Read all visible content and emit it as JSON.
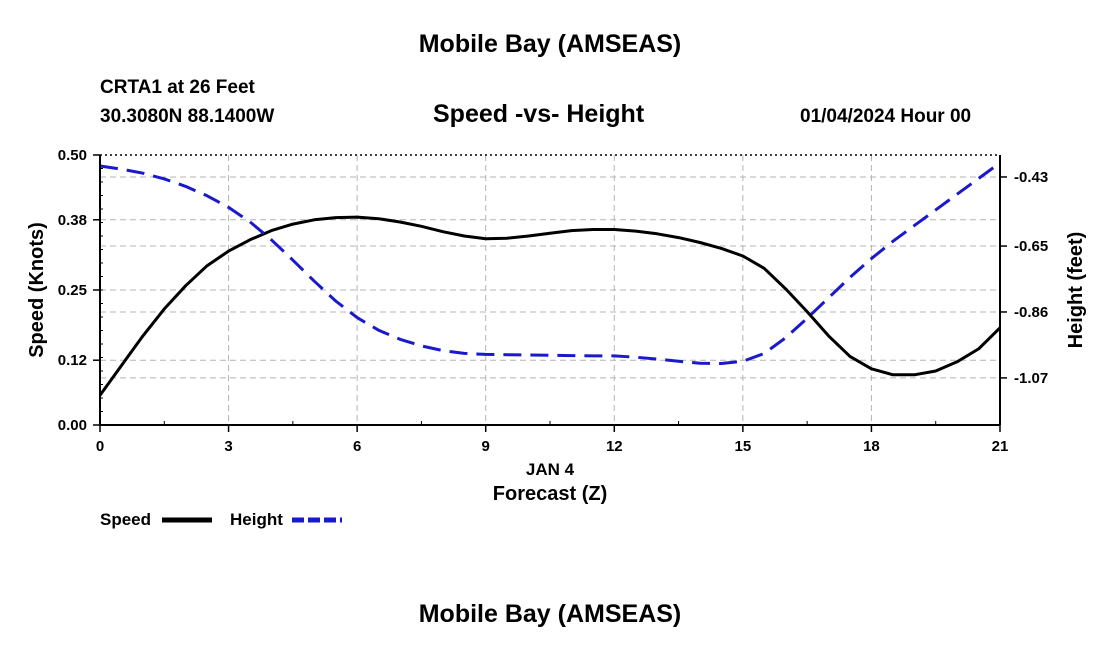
{
  "header": {
    "title": "Mobile Bay (AMSEAS)",
    "station": "CRTA1 at 26 Feet",
    "coords": "30.3080N  88.1400W",
    "subtitle": "Speed -vs- Height",
    "datetime": "01/04/2024 Hour 00"
  },
  "footer": {
    "title": "Mobile Bay (AMSEAS)"
  },
  "chart_data": {
    "type": "line",
    "title": "Speed -vs- Height",
    "xlabel": "Forecast (Z)",
    "xlabel_date": "JAN 4",
    "x_ticks": [
      "0",
      "3",
      "6",
      "9",
      "12",
      "15",
      "18",
      "21"
    ],
    "xlim": [
      0,
      21
    ],
    "ylabel_left": "Speed (Knots)",
    "ylabel_right": "Height (feet)",
    "ylim_left": [
      0.0,
      0.5
    ],
    "yticks_left": [
      "0.00",
      "0.12",
      "0.25",
      "0.38",
      "0.50"
    ],
    "ylim_right": [
      -1.22,
      -0.36
    ],
    "yticks_right": [
      "-0.43",
      "-0.65",
      "-0.86",
      "-1.07"
    ],
    "grid": true,
    "series": [
      {
        "name": "Speed",
        "axis": "left",
        "color": "#000000",
        "style": "solid",
        "x": [
          0,
          0.5,
          1,
          1.5,
          2,
          2.5,
          3,
          3.5,
          4,
          4.5,
          5,
          5.5,
          6,
          6.5,
          7,
          7.5,
          8,
          8.5,
          9,
          9.5,
          10,
          10.5,
          11,
          11.5,
          12,
          12.5,
          13,
          13.5,
          14,
          14.5,
          15,
          15.5,
          16,
          16.5,
          17,
          17.5,
          18,
          18.5,
          19,
          19.5,
          20,
          20.5,
          21
        ],
        "values": [
          0.055,
          0.11,
          0.165,
          0.215,
          0.258,
          0.295,
          0.322,
          0.343,
          0.36,
          0.372,
          0.38,
          0.384,
          0.385,
          0.382,
          0.376,
          0.368,
          0.358,
          0.35,
          0.345,
          0.346,
          0.35,
          0.355,
          0.36,
          0.362,
          0.362,
          0.359,
          0.354,
          0.347,
          0.338,
          0.327,
          0.313,
          0.29,
          0.252,
          0.21,
          0.165,
          0.127,
          0.104,
          0.093,
          0.093,
          0.1,
          0.117,
          0.141,
          0.18
        ]
      },
      {
        "name": "Height",
        "axis": "right",
        "color": "#1a1acc",
        "style": "dashed",
        "x": [
          0,
          0.5,
          1,
          1.5,
          2,
          2.5,
          3,
          3.5,
          4,
          4.5,
          5,
          5.5,
          6,
          6.5,
          7,
          7.5,
          8,
          8.5,
          9,
          9.5,
          10,
          10.5,
          11,
          11.5,
          12,
          12.5,
          13,
          13.5,
          14,
          14.5,
          15,
          15.5,
          16,
          16.5,
          17,
          17.5,
          18,
          18.5,
          19,
          19.5,
          20,
          20.5,
          21
        ],
        "values": [
          -0.395,
          -0.405,
          -0.418,
          -0.436,
          -0.46,
          -0.49,
          -0.527,
          -0.573,
          -0.63,
          -0.695,
          -0.762,
          -0.825,
          -0.878,
          -0.918,
          -0.947,
          -0.968,
          -0.983,
          -0.992,
          -0.995,
          -0.996,
          -0.997,
          -0.998,
          -0.999,
          -1.0,
          -1.0,
          -1.004,
          -1.01,
          -1.017,
          -1.023,
          -1.024,
          -1.017,
          -0.992,
          -0.942,
          -0.88,
          -0.815,
          -0.75,
          -0.69,
          -0.635,
          -0.585,
          -0.535,
          -0.485,
          -0.435,
          -0.385
        ]
      }
    ],
    "legend": {
      "placement": "bottom-left",
      "entries": [
        "Speed",
        "Height"
      ]
    }
  }
}
